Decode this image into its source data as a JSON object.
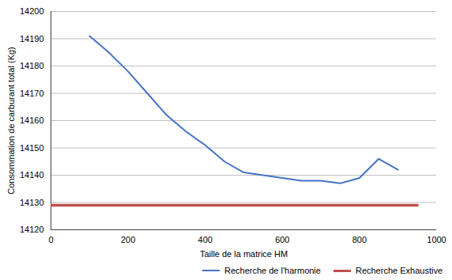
{
  "chart_data": {
    "type": "line",
    "xlabel": "Taille de la matrice HM",
    "ylabel": "Consommation de carburant total (Kg)",
    "series": [
      {
        "name": "Recherche de l'harmonie",
        "color": "#4472C4",
        "x": [
          100,
          150,
          200,
          250,
          300,
          350,
          400,
          450,
          500,
          550,
          600,
          650,
          700,
          750,
          800,
          850,
          900
        ],
        "values": [
          14191,
          14185,
          14178,
          14170,
          14162,
          14156,
          14151,
          14145,
          14141,
          14140,
          14139,
          14138,
          14138,
          14137,
          14139,
          14146,
          14142
        ]
      },
      {
        "name": "Recherche Exhaustive",
        "color": "#C0504D",
        "x": [
          0,
          950
        ],
        "values": [
          14129,
          14129
        ]
      }
    ],
    "xlim": [
      0,
      1000
    ],
    "ylim": [
      14120,
      14200
    ],
    "xticks": [
      0,
      200,
      400,
      600,
      800,
      1000
    ],
    "yticks": [
      14120,
      14130,
      14140,
      14150,
      14160,
      14170,
      14180,
      14190,
      14200
    ],
    "grid": true,
    "legend": "lower right"
  }
}
